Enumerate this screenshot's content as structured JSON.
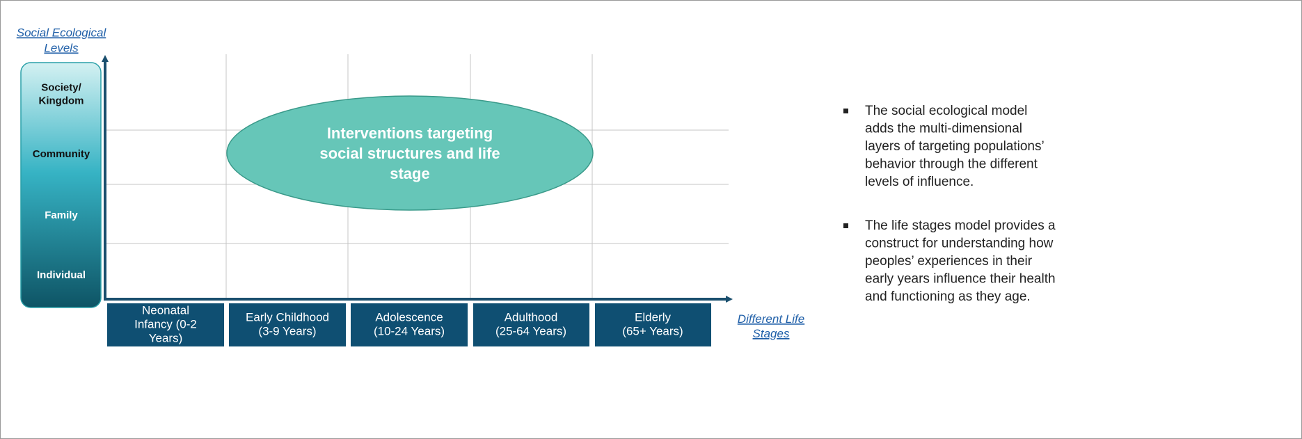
{
  "y_axis_label": [
    "Social Ecological",
    "Levels"
  ],
  "levels": [
    [
      "Society/",
      "Kingdom"
    ],
    [
      "Community"
    ],
    [
      "Family"
    ],
    [
      "Individual"
    ]
  ],
  "intervention": [
    "Interventions targeting",
    "social structures and life",
    "stage"
  ],
  "stages": [
    [
      "Neonatal",
      "Infancy  (0-2",
      "Years)"
    ],
    [
      "Early Childhood",
      "(3-9 Years)"
    ],
    [
      "Adolescence",
      "(10-24 Years)"
    ],
    [
      "Adulthood",
      "(25-64 Years)"
    ],
    [
      "Elderly",
      "(65+ Years)"
    ]
  ],
  "x_axis_label": [
    "Different Life",
    "Stages"
  ],
  "bullets": [
    [
      "The social ecological model",
      "adds the multi-dimensional",
      "layers of targeting populations’",
      "behavior through the different",
      "levels of influence."
    ],
    [
      "The life stages model provides a",
      "construct for understanding how",
      "peoples’ experiences in their",
      "early years influence their health",
      "and functioning as they age."
    ]
  ]
}
